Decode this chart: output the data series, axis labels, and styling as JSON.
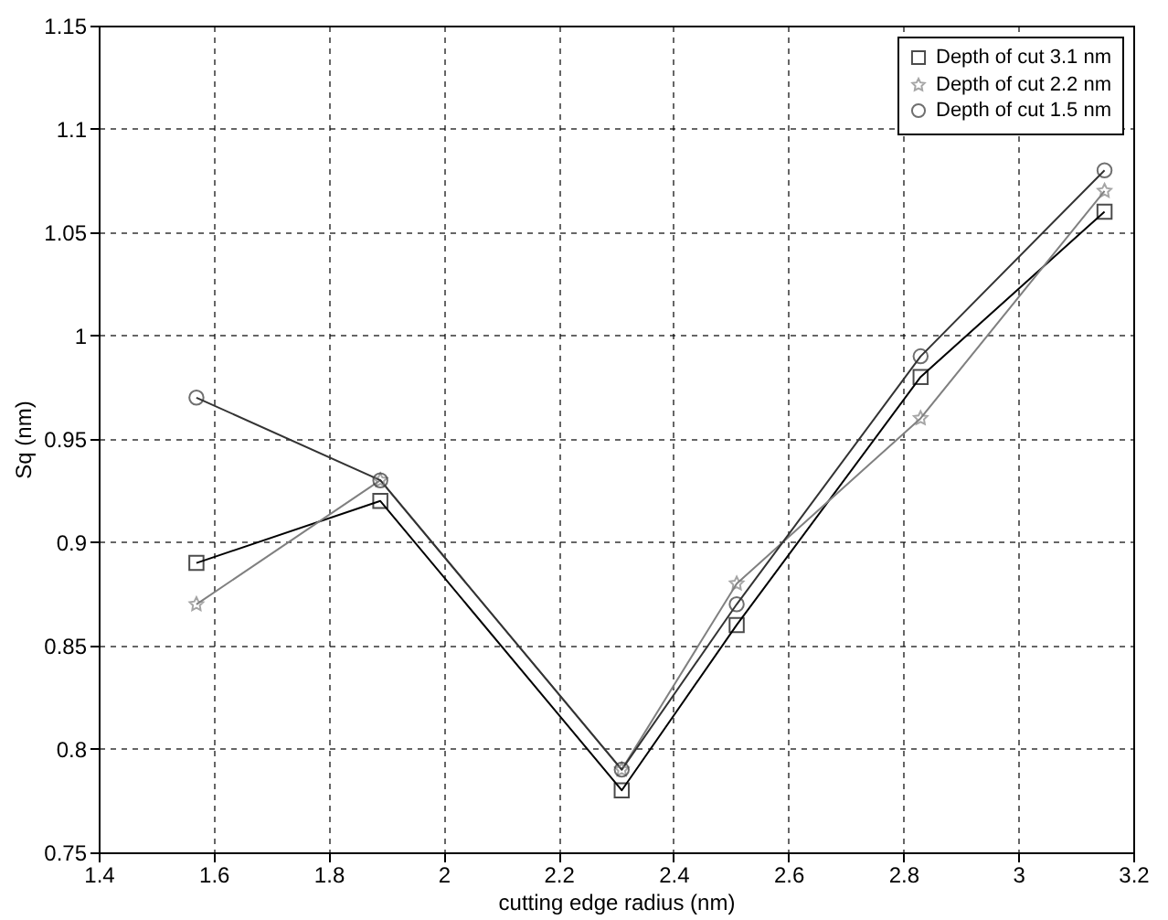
{
  "chart_data": {
    "type": "line",
    "xlabel": "cutting edge radius (nm)",
    "ylabel": "Sq (nm)",
    "x": [
      1.57,
      1.89,
      2.31,
      2.51,
      2.83,
      3.15
    ],
    "series": [
      {
        "name": "Depth of cut 3.1 nm",
        "color": "#000000",
        "marker": "square",
        "values": [
          0.89,
          0.92,
          0.78,
          0.86,
          0.98,
          1.06
        ]
      },
      {
        "name": "Depth of cut 2.2 nm",
        "color": "#808080",
        "marker": "star",
        "values": [
          0.87,
          0.93,
          0.79,
          0.88,
          0.96,
          1.07
        ]
      },
      {
        "name": "Depth of cut 1.5 nm",
        "color": "#333333",
        "marker": "circle",
        "values": [
          0.97,
          0.93,
          0.79,
          0.87,
          0.99,
          1.08
        ]
      }
    ],
    "xlim": [
      1.4,
      3.2
    ],
    "xticks": [
      1.4,
      1.6,
      1.8,
      2,
      2.2,
      2.4,
      2.6,
      2.8,
      3,
      3.2
    ],
    "ylim": [
      0.75,
      1.15
    ],
    "yticks": [
      0.75,
      0.8,
      0.85,
      0.9,
      0.95,
      1,
      1.05,
      1.1,
      1.15
    ],
    "grid": true,
    "legend": "top right",
    "line_style": "solid"
  }
}
